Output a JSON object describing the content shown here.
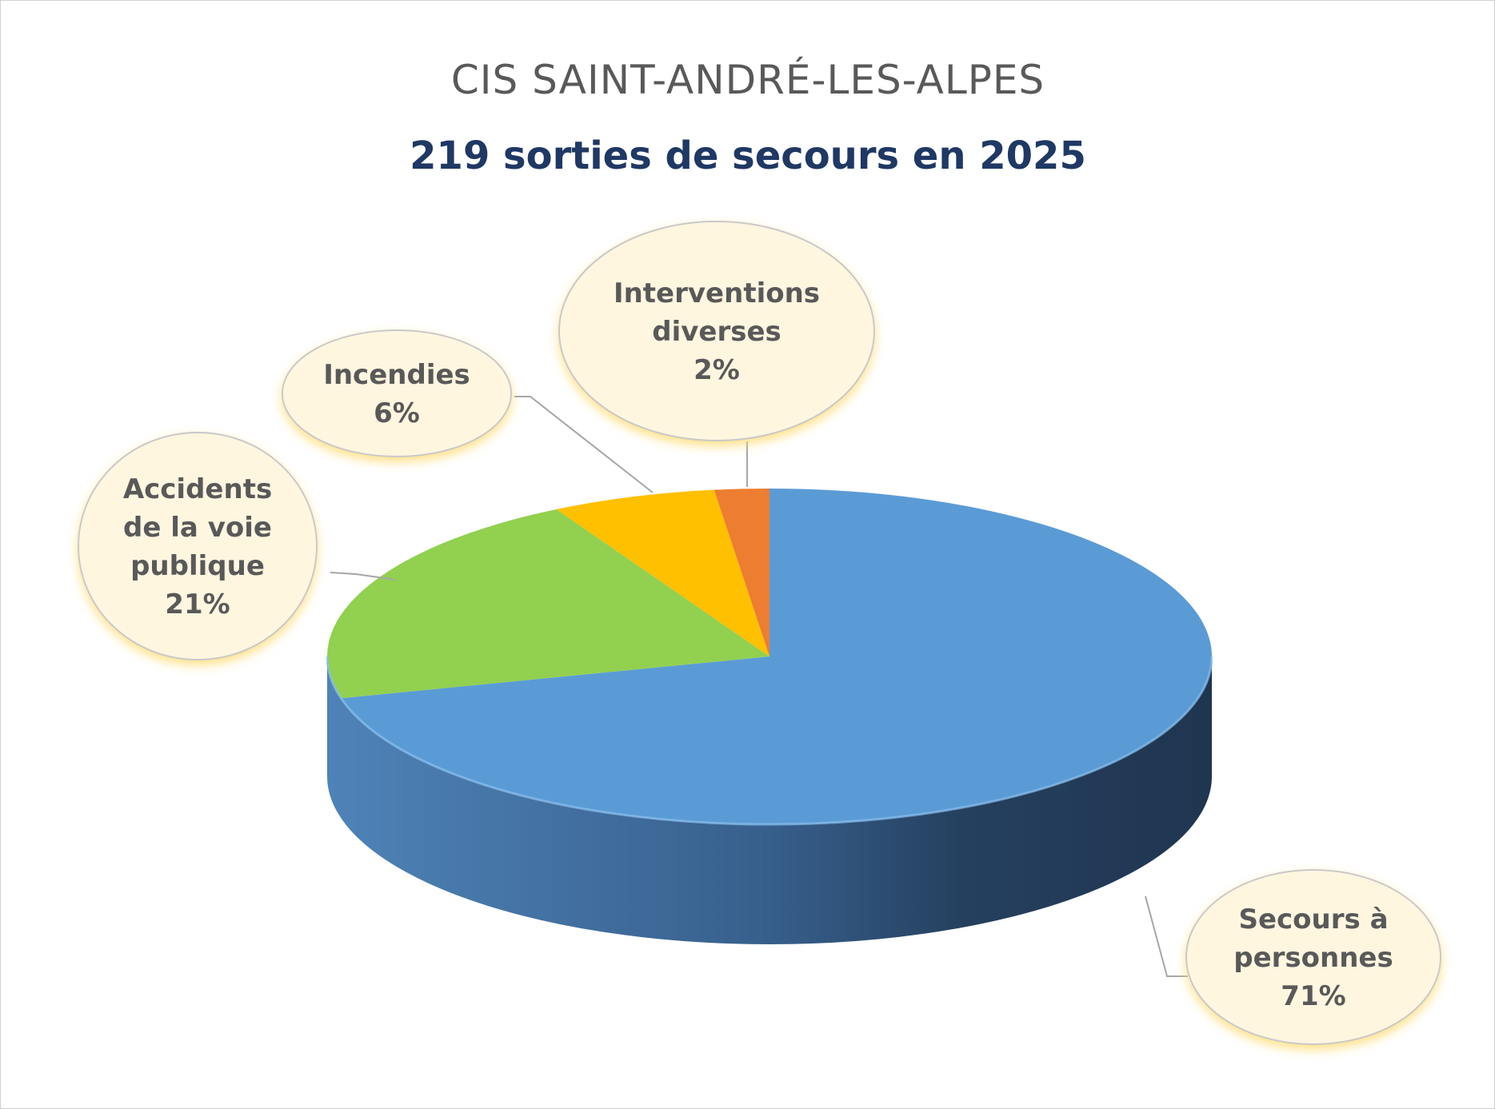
{
  "chart_data": {
    "type": "pie",
    "title": "CIS SAINT-ANDRÉ-LES-ALPES",
    "subtitle": "219 sorties de secours en 2025",
    "categories": [
      "Secours à personnes",
      "Accidents de la voie publique",
      "Incendies",
      "Interventions diverses"
    ],
    "values": [
      71,
      21,
      6,
      2
    ],
    "labels": [
      {
        "lines": [
          "Secours à",
          "personnes"
        ],
        "pct": "71%"
      },
      {
        "lines": [
          "Accidents",
          "de la voie",
          "publique"
        ],
        "pct": "21%"
      },
      {
        "lines": [
          "Incendies"
        ],
        "pct": "6%"
      },
      {
        "lines": [
          "Interventions",
          "diverses"
        ],
        "pct": "2%"
      }
    ],
    "colors": [
      "#5B9BD5",
      "#92D050",
      "#FFC000",
      "#ED7D31"
    ],
    "title_color": "#595959",
    "subtitle_color": "#1F3864",
    "label_color": "#595959",
    "callout_fill": "#FFF6E0",
    "style": "3d"
  }
}
